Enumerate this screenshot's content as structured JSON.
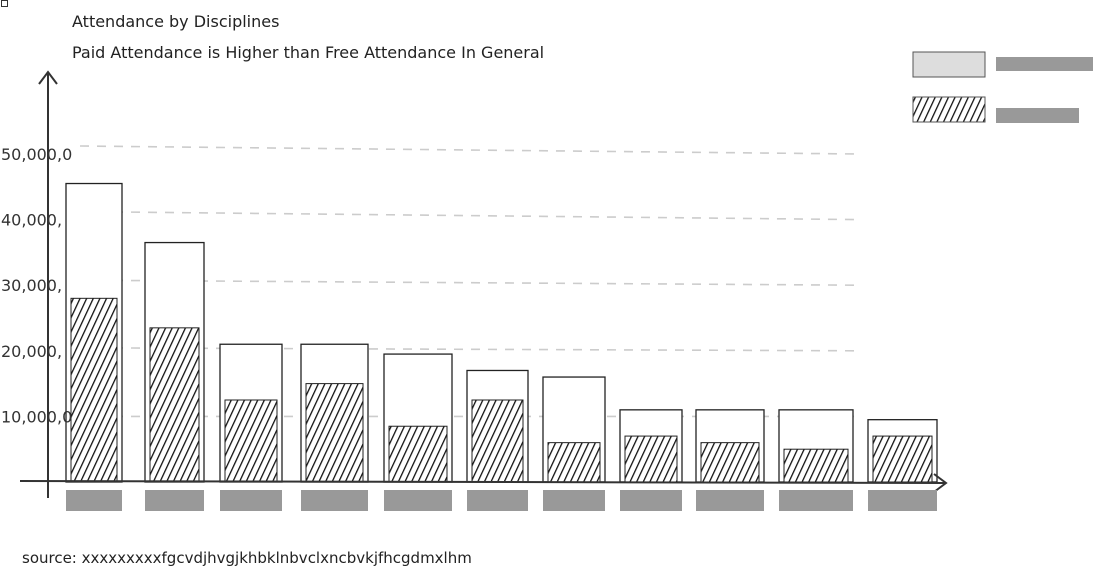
{
  "chart_data": {
    "type": "bar",
    "title": "Attendance by Disciplines",
    "subtitle": "Paid Attendance is Higher than Free Attendance In General",
    "source": "source: xxxxxxxxxfgcvdjhvgjkhbklnbvclxncbvkjfhcgdmxlhm",
    "y_tick_labels": [
      "10,000,0",
      "20,000,",
      "30,000,",
      "40,000,",
      "50,000,0"
    ],
    "y_tick_values": [
      10000,
      20000,
      30000,
      40000,
      50000
    ],
    "ylim": [
      0,
      60000
    ],
    "grid": true,
    "legend_position": "top-right",
    "categories": [
      "",
      "",
      "",
      "",
      "",
      "",
      "",
      "",
      "",
      "",
      ""
    ],
    "series": [
      {
        "values": [
          45500,
          36500,
          21000,
          21000,
          19500,
          17000,
          16000,
          11000,
          11000,
          11000,
          9500
        ]
      },
      {
        "values": [
          28000,
          23500,
          12500,
          15000,
          8500,
          12500,
          6000,
          7000,
          6000,
          5000,
          7000
        ]
      }
    ],
    "colors": {
      "total_fill": "#ffffff",
      "placeholder": "#999999",
      "grid": "#cccccc",
      "legend_swatch": "#dddddd"
    }
  }
}
